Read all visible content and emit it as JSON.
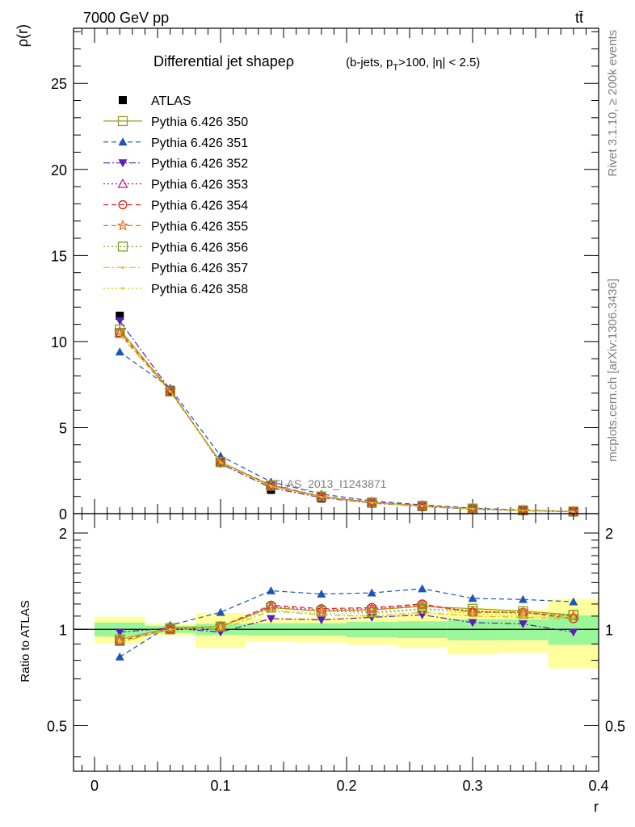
{
  "header": {
    "left": "7000 GeV pp",
    "right": "tt̄"
  },
  "side_labels": {
    "top": "Rivet 3.1.10, ≥ 200k events",
    "bottom": "mcplots.cern.ch [arXiv:1306.3436]"
  },
  "chart_data": [
    {
      "type": "scatter",
      "title": "Differential jet shapeρ",
      "title_suffix": "(b-jets, p_T>100, |η| < 2.5)",
      "watermark": "ATLAS_2013_I1243871",
      "ylabel": "ρ(r)",
      "xlabel": "r",
      "xlim": [
        -0.0167,
        0.4
      ],
      "ylim": [
        0,
        28.2
      ],
      "xticks": [
        "0",
        "0.1",
        "0.2",
        "0.3",
        "0.4"
      ],
      "yticks": [
        "0",
        "5",
        "10",
        "15",
        "20",
        "25"
      ],
      "legend_position": "top-left",
      "x": [
        0.02,
        0.06,
        0.1,
        0.14,
        0.18,
        0.22,
        0.26,
        0.3,
        0.34,
        0.38
      ],
      "series": [
        {
          "name": "ATLAS",
          "color": "#000000",
          "marker": "square-filled",
          "line": "none",
          "values": [
            11.5,
            7.1,
            2.95,
            1.38,
            0.88,
            0.58,
            0.38,
            0.25,
            0.17,
            0.11
          ]
        },
        {
          "name": "Pythia 6.426 350",
          "color": "#9a9a1f",
          "marker": "square-open",
          "line": "solid",
          "values": [
            10.7,
            7.15,
            3.0,
            1.62,
            0.99,
            0.65,
            0.45,
            0.29,
            0.19,
            0.12
          ]
        },
        {
          "name": "Pythia 6.426 351",
          "color": "#1d56b6",
          "marker": "triangle-up-filled",
          "line": "dashed",
          "values": [
            9.4,
            7.3,
            3.35,
            1.85,
            1.14,
            0.74,
            0.51,
            0.32,
            0.21,
            0.13
          ]
        },
        {
          "name": "Pythia 6.426 352",
          "color": "#5a1fb6",
          "marker": "triangle-down-filled",
          "line": "dashdot",
          "values": [
            11.2,
            7.2,
            2.9,
            1.5,
            0.93,
            0.61,
            0.42,
            0.26,
            0.17,
            0.11
          ]
        },
        {
          "name": "Pythia 6.426 353",
          "color": "#b8208a",
          "marker": "triangle-up-open",
          "line": "dotted",
          "values": [
            10.5,
            7.1,
            3.0,
            1.65,
            1.0,
            0.66,
            0.46,
            0.29,
            0.19,
            0.12
          ]
        },
        {
          "name": "Pythia 6.426 354",
          "color": "#e0201c",
          "marker": "circle-open",
          "line": "dashed",
          "values": [
            10.5,
            7.1,
            3.0,
            1.66,
            1.01,
            0.67,
            0.47,
            0.28,
            0.19,
            0.12
          ]
        },
        {
          "name": "Pythia 6.426 355",
          "color": "#f06a1c",
          "marker": "star-open",
          "line": "dashed",
          "values": [
            10.6,
            7.15,
            3.0,
            1.64,
            0.99,
            0.66,
            0.46,
            0.28,
            0.19,
            0.12
          ]
        },
        {
          "name": "Pythia 6.426 356",
          "color": "#7a9a1a",
          "marker": "square-open",
          "line": "dotted",
          "values": [
            10.5,
            7.1,
            3.0,
            1.63,
            0.99,
            0.64,
            0.45,
            0.29,
            0.19,
            0.12
          ]
        },
        {
          "name": "Pythia 6.426 357",
          "color": "#d6b61c",
          "marker": "dot",
          "line": "dashdot",
          "values": [
            10.4,
            7.1,
            2.95,
            1.58,
            0.96,
            0.63,
            0.44,
            0.27,
            0.18,
            0.12
          ]
        },
        {
          "name": "Pythia 6.426 358",
          "color": "#c6d61c",
          "marker": "dot",
          "line": "dotted",
          "values": [
            10.5,
            7.1,
            3.0,
            1.6,
            0.97,
            0.63,
            0.44,
            0.28,
            0.18,
            0.12
          ]
        }
      ]
    },
    {
      "type": "scatter",
      "ylabel": "Ratio to ATLAS",
      "xlabel": "r",
      "xlim": [
        -0.0167,
        0.4
      ],
      "ylim": [
        0.36,
        2.3
      ],
      "yscale": "log",
      "yticks": [
        "0.5",
        "1",
        "2"
      ],
      "reference_line": 1,
      "bands": {
        "bin_edges": [
          0.0,
          0.04,
          0.08,
          0.12,
          0.16,
          0.2,
          0.24,
          0.28,
          0.32,
          0.36,
          0.4
        ],
        "inner_color": "#99f799",
        "outer_color": "#ffff9e",
        "inner_low": [
          0.95,
          0.975,
          0.96,
          0.955,
          0.955,
          0.945,
          0.94,
          0.925,
          0.925,
          0.895
        ],
        "inner_high": [
          1.05,
          1.025,
          1.04,
          1.045,
          1.045,
          1.055,
          1.06,
          1.075,
          1.075,
          1.105
        ],
        "outer_low": [
          0.905,
          0.955,
          0.875,
          0.915,
          0.91,
          0.895,
          0.88,
          0.835,
          0.845,
          0.755
        ],
        "outer_high": [
          1.095,
          1.045,
          1.125,
          1.085,
          1.09,
          1.105,
          1.12,
          1.165,
          1.155,
          1.245
        ]
      },
      "series": [
        {
          "name": "Pythia 6.426 350",
          "values": [
            0.93,
            1.01,
            1.02,
            1.17,
            1.14,
            1.15,
            1.18,
            1.16,
            1.14,
            1.11
          ]
        },
        {
          "name": "Pythia 6.426 351",
          "values": [
            0.82,
            1.03,
            1.13,
            1.32,
            1.29,
            1.3,
            1.34,
            1.25,
            1.24,
            1.22
          ]
        },
        {
          "name": "Pythia 6.426 352",
          "values": [
            0.98,
            1.01,
            0.98,
            1.08,
            1.07,
            1.09,
            1.11,
            1.05,
            1.04,
            0.98
          ]
        },
        {
          "name": "Pythia 6.426 353",
          "values": [
            0.92,
            1.0,
            1.02,
            1.18,
            1.15,
            1.16,
            1.19,
            1.14,
            1.13,
            1.1
          ]
        },
        {
          "name": "Pythia 6.426 354",
          "values": [
            0.92,
            1.0,
            1.02,
            1.19,
            1.16,
            1.17,
            1.2,
            1.13,
            1.13,
            1.08
          ]
        },
        {
          "name": "Pythia 6.426 355",
          "values": [
            0.93,
            1.01,
            1.02,
            1.17,
            1.14,
            1.15,
            1.19,
            1.13,
            1.13,
            1.1
          ]
        },
        {
          "name": "Pythia 6.426 356",
          "values": [
            0.92,
            1.0,
            1.02,
            1.17,
            1.14,
            1.13,
            1.16,
            1.14,
            1.12,
            1.11
          ]
        },
        {
          "name": "Pythia 6.426 357",
          "values": [
            0.91,
            1.0,
            1.0,
            1.14,
            1.11,
            1.1,
            1.13,
            1.1,
            1.09,
            1.08
          ]
        },
        {
          "name": "Pythia 6.426 358",
          "values": [
            0.92,
            1.0,
            1.02,
            1.15,
            1.12,
            1.12,
            1.15,
            1.12,
            1.1,
            1.09
          ]
        }
      ]
    }
  ]
}
